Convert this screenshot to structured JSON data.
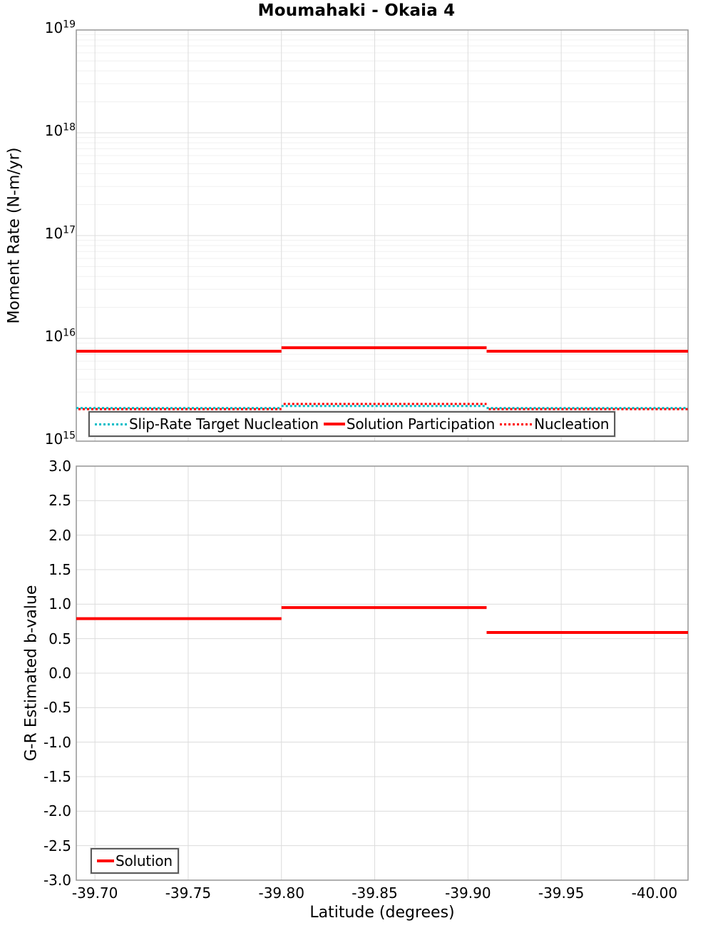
{
  "title": "Moumahaki - Okaia 4",
  "colors": {
    "red": "#ff0000",
    "cyan": "#00bec8",
    "grid_major": "#dcdcdc",
    "grid_minor": "#f0f0f0",
    "axis_border": "#959595",
    "legend_border": "#5c5c5c",
    "text": "#000000"
  },
  "chart_data": [
    {
      "type": "line",
      "panel": "top",
      "ylabel": "Moment Rate (N-m/yr)",
      "yscale": "log",
      "ylim": [
        1000000000000000.0,
        1e+19
      ],
      "ytick_base": "10",
      "ytick_exponents": [
        19,
        18,
        17,
        16,
        15
      ],
      "x_axis_reversed": true,
      "xlim": [
        -39.69,
        -40.018
      ],
      "xticks": [
        -39.7,
        -39.75,
        -39.8,
        -39.85,
        -39.9,
        -39.95,
        -40.0
      ],
      "xtick_labels_shown": false,
      "grid": "major+log-minor",
      "legend_position": "inside bottom-left",
      "step_x_breaks": [
        -39.69,
        -39.8,
        -39.91,
        -40.018
      ],
      "series": [
        {
          "name": "Slip-Rate Target Nucleation",
          "style": "dotted",
          "color": "#00bec8",
          "values": [
            2100000000000000.0,
            2200000000000000.0,
            2100000000000000.0
          ]
        },
        {
          "name": "Solution Participation",
          "style": "solid",
          "color": "#ff0000",
          "values": [
            7500000000000000.0,
            8100000000000000.0,
            7500000000000000.0
          ]
        },
        {
          "name": "Nucleation",
          "style": "dotted",
          "color": "#ff0000",
          "values": [
            2050000000000000.0,
            2300000000000000.0,
            2050000000000000.0
          ]
        }
      ]
    },
    {
      "type": "line",
      "panel": "bottom",
      "ylabel": "G-R Estimated b-value",
      "xlabel": "Latitude (degrees)",
      "yscale": "linear",
      "ylim": [
        -3.0,
        3.0
      ],
      "yticks": [
        3.0,
        2.5,
        2.0,
        1.5,
        1.0,
        0.5,
        0.0,
        -0.5,
        -1.0,
        -1.5,
        -2.0,
        -2.5,
        -3.0
      ],
      "ytick_labels": [
        "3.0",
        "2.5",
        "2.0",
        "1.5",
        "1.0",
        "0.5",
        "0.0",
        "-0.5",
        "-1.0",
        "-1.5",
        "-2.0",
        "-2.5",
        "-3.0"
      ],
      "x_axis_reversed": true,
      "xlim": [
        -39.69,
        -40.018
      ],
      "xticks": [
        -39.7,
        -39.75,
        -39.8,
        -39.85,
        -39.9,
        -39.95,
        -40.0
      ],
      "xtick_labels": [
        "-39.70",
        "-39.75",
        "-39.80",
        "-39.85",
        "-39.90",
        "-39.95",
        "-40.00"
      ],
      "grid": "major",
      "legend_position": "inside bottom-left",
      "step_x_breaks": [
        -39.69,
        -39.8,
        -39.91,
        -40.018
      ],
      "series": [
        {
          "name": "Solution",
          "style": "solid",
          "color": "#ff0000",
          "values": [
            0.79,
            0.95,
            0.59
          ]
        }
      ]
    }
  ]
}
